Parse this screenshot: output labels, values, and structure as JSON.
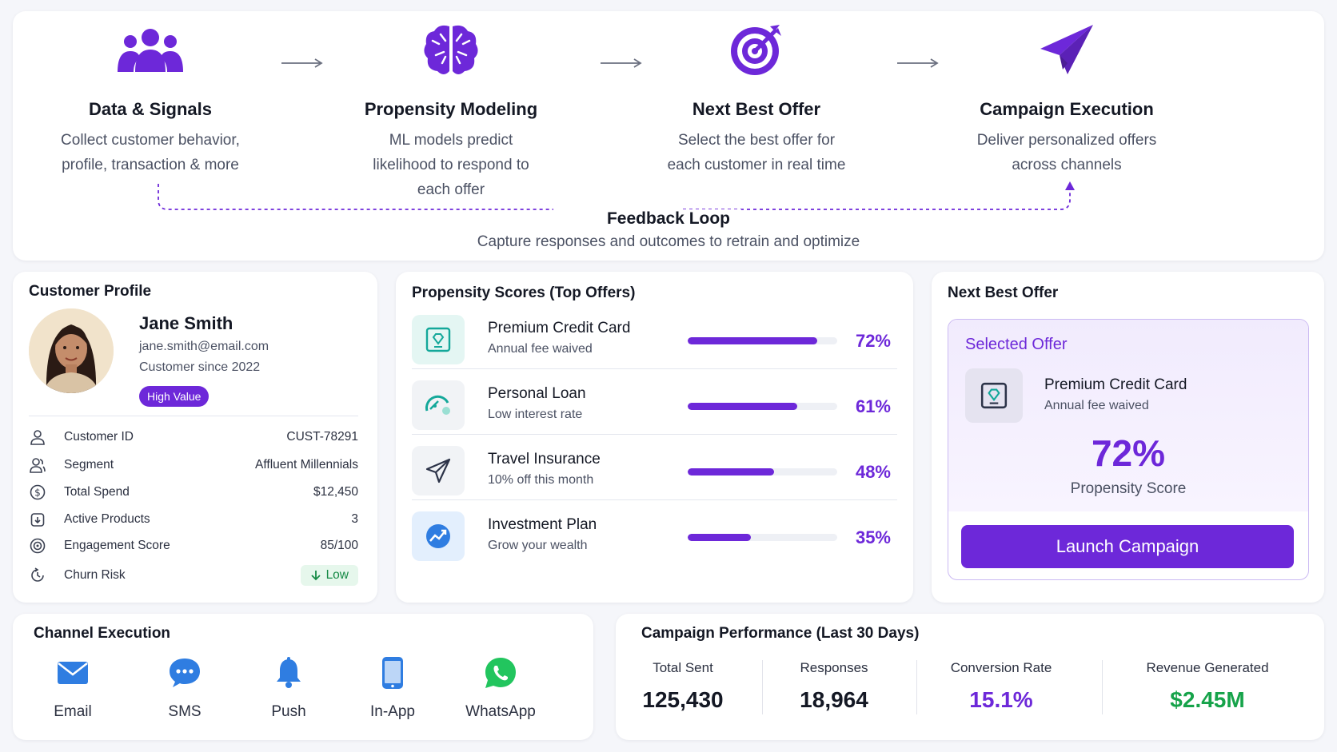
{
  "flow": {
    "steps": [
      {
        "title": "Data & Signals",
        "desc": "Collect customer behavior, profile, transaction & more",
        "icon": "users-icon"
      },
      {
        "title": "Propensity Modeling",
        "desc": "ML models predict likelihood to respond to each offer",
        "icon": "brain-icon"
      },
      {
        "title": "Next Best Offer",
        "desc": "Select the best offer for each customer in real time",
        "icon": "target-icon"
      },
      {
        "title": "Campaign Execution",
        "desc": "Deliver personalized offers across channels",
        "icon": "paper-plane-icon"
      }
    ],
    "feedback_title": "Feedback Loop",
    "feedback_desc": "Capture responses and outcomes to retrain and optimize"
  },
  "profile": {
    "title": "Customer Profile",
    "name": "Jane Smith",
    "email": "jane.smith@email.com",
    "since": "Customer since 2022",
    "badge": "High Value",
    "attributes": [
      {
        "label": "Customer ID",
        "value": "CUST-78291",
        "icon": "user-icon"
      },
      {
        "label": "Segment",
        "value": "Affluent Millennials",
        "icon": "users-icon"
      },
      {
        "label": "Total Spend",
        "value": "$12,450",
        "icon": "dollar-icon"
      },
      {
        "label": "Active Products",
        "value": "3",
        "icon": "box-icon"
      },
      {
        "label": "Engagement Score",
        "value": "85/100",
        "icon": "engagement-icon"
      },
      {
        "label": "Churn Risk",
        "value": "Low",
        "icon": "churn-icon"
      }
    ]
  },
  "scores": {
    "title": "Propensity Scores (Top Offers)",
    "offers": [
      {
        "name": "Premium Credit Card",
        "desc": "Annual fee waived",
        "score": 72,
        "score_label": "72%",
        "icon": "credit-card-gem-icon"
      },
      {
        "name": "Personal Loan",
        "desc": "Low interest rate",
        "score": 61,
        "score_label": "61%",
        "icon": "loan-gauge-icon"
      },
      {
        "name": "Travel Insurance",
        "desc": "10% off this month",
        "score": 48,
        "score_label": "48%",
        "icon": "plane-icon"
      },
      {
        "name": "Investment Plan",
        "desc": "Grow your wealth",
        "score": 35,
        "score_label": "35%",
        "icon": "growth-chart-icon"
      }
    ]
  },
  "nbo": {
    "title": "Next Best Offer",
    "selected_label": "Selected Offer",
    "offer_name": "Premium Credit Card",
    "offer_desc": "Annual fee waived",
    "score": "72%",
    "score_label": "Propensity Score",
    "button": "Launch Campaign"
  },
  "channels": {
    "title": "Channel Execution",
    "items": [
      {
        "label": "Email",
        "icon": "envelope-icon"
      },
      {
        "label": "SMS",
        "icon": "chat-bubble-icon"
      },
      {
        "label": "Push",
        "icon": "bell-icon"
      },
      {
        "label": "In-App",
        "icon": "phone-icon"
      },
      {
        "label": "WhatsApp",
        "icon": "whatsapp-icon"
      }
    ]
  },
  "performance": {
    "title": "Campaign Performance (Last 30 Days)",
    "metrics": [
      {
        "label": "Total Sent",
        "value": "125,430",
        "color": "#141824"
      },
      {
        "label": "Responses",
        "value": "18,964",
        "color": "#141824"
      },
      {
        "label": "Conversion Rate",
        "value": "15.1%",
        "color": "#6d28d9"
      },
      {
        "label": "Revenue Generated",
        "value": "$2.45M",
        "color": "#16a34a"
      }
    ]
  },
  "colors": {
    "accent": "#6d28d9",
    "success": "#16a34a",
    "teal": "#14b8a6",
    "blue": "#2563eb"
  }
}
